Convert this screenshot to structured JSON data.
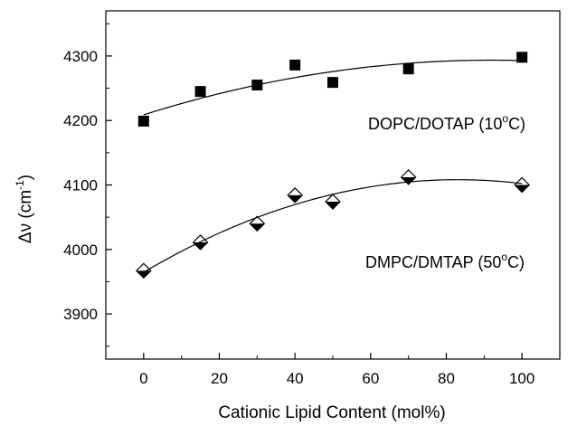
{
  "chart_data": {
    "type": "scatter",
    "xlabel": "Cationic Lipid Content (mol%)",
    "ylabel_main": "Δν (cm",
    "ylabel_sup": "-1",
    "ylabel_end": ")",
    "xlim": [
      -10,
      110
    ],
    "ylim": [
      3830,
      4370
    ],
    "xticks": [
      0,
      20,
      40,
      60,
      80,
      100
    ],
    "yticks": [
      3900,
      4000,
      4100,
      4200,
      4300
    ],
    "xtick_labels": [
      "0",
      "20",
      "40",
      "60",
      "80",
      "100"
    ],
    "ytick_labels": [
      "3900",
      "4000",
      "4100",
      "4200",
      "4300"
    ],
    "grid": false,
    "series": [
      {
        "label_main": "DOPC/DOTAP (10",
        "label_sup": "o",
        "label_end": "C)",
        "marker": "square",
        "color": "#000000",
        "x": [
          0,
          15,
          30,
          40,
          50,
          70,
          100
        ],
        "y": [
          4199,
          4245,
          4255,
          4286,
          4259,
          4280,
          4298
        ],
        "fit": "quadratic"
      },
      {
        "label_main": "DMPC/DMTAP (50",
        "label_sup": "o",
        "label_end": "C)",
        "marker": "half-filled-diamond",
        "color": "#000000",
        "x": [
          0,
          15,
          30,
          40,
          50,
          70,
          100
        ],
        "y": [
          3967,
          4011,
          4040,
          4084,
          4074,
          4112,
          4100
        ],
        "fit": "quadratic"
      }
    ]
  }
}
